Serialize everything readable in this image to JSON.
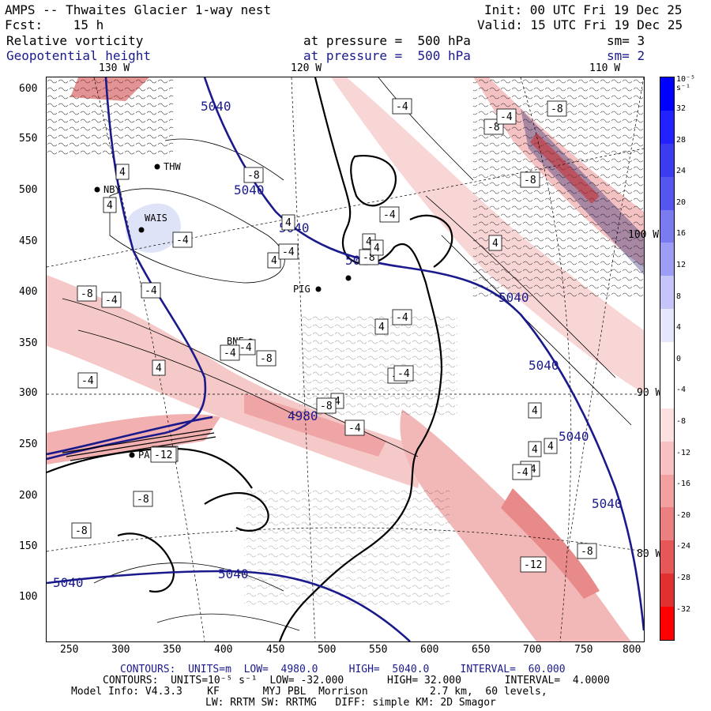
{
  "header": {
    "title": "AMPS -- Thwaites Glacier 1-way nest",
    "init": "Init: 00 UTC Fri 19 Dec 25",
    "fcst": "Fcst:    15 h",
    "valid": "Valid: 15 UTC Fri 19 Dec 25",
    "field1_name": "Relative vorticity",
    "field1_level": "at pressure =  500 hPa",
    "field1_sm": "sm= 3",
    "field2_name": "Geopotential height",
    "field2_level": "at pressure =  500 hPa",
    "field2_sm": "sm= 2"
  },
  "map": {
    "lon_labels_top": [
      "130 W",
      "120 W",
      "110 W"
    ],
    "lon_labels_right": [
      "100 W",
      "90 W",
      "80 W"
    ],
    "x_ticks": [
      "250",
      "300",
      "350",
      "400",
      "450",
      "500",
      "550",
      "600",
      "650",
      "700",
      "750",
      "800"
    ],
    "y_ticks": [
      "600",
      "550",
      "500",
      "450",
      "400",
      "350",
      "300",
      "250",
      "200",
      "150",
      "100"
    ],
    "stations": [
      "THW",
      "NBY",
      "WAIS",
      "PIG",
      "BNE",
      "PAL"
    ],
    "height_labels": [
      "5040",
      "5040",
      "5040",
      "5040",
      "5040",
      "5040",
      "5040",
      "5040",
      "5040",
      "5040",
      "4980"
    ],
    "vort_labels": [
      "-4",
      "-8",
      "-4",
      "-4",
      "-8",
      "4",
      "4",
      "4",
      "-8",
      "-4",
      "4",
      "4",
      "-4",
      "-8",
      "-12",
      "-4",
      "-8",
      "4",
      "-4",
      "-4",
      "4",
      "-4",
      "-8",
      "-4",
      "4",
      "-8",
      "-4",
      "-8",
      "4",
      "4",
      "-4",
      "-12",
      "-8",
      "-12",
      "-8",
      "4",
      "-4",
      "4",
      "-8",
      "-4",
      "4",
      "-4",
      "-4"
    ]
  },
  "colorbar": {
    "unit": "10⁻⁵ s⁻¹",
    "labels": [
      "32",
      "28",
      "24",
      "20",
      "16",
      "12",
      "8",
      "4",
      "0",
      "-4",
      "-8",
      "-12",
      "-16",
      "-20",
      "-24",
      "-28",
      "-32"
    ],
    "positive_color": "#0000ff",
    "negative_color": "#ff0000"
  },
  "footer": {
    "line1_label": "CONTOURS:",
    "line1_units": "UNITS=m",
    "line1_low": "LOW=  4980.0",
    "line1_high": "HIGH=  5040.0",
    "line1_interval": "INTERVAL=  60.000",
    "line2": "CONTOURS:  UNITS=10⁻⁵ s⁻¹  LOW= -32.000       HIGH= 32.000       INTERVAL=  4.0000",
    "line3": "Model Info: V4.3.3    KF       MYJ PBL  Morrison          2.7 km,  60 levels,",
    "line4": "LW: RRTM SW: RRTMG   DIFF: simple KM: 2D Smagor"
  }
}
